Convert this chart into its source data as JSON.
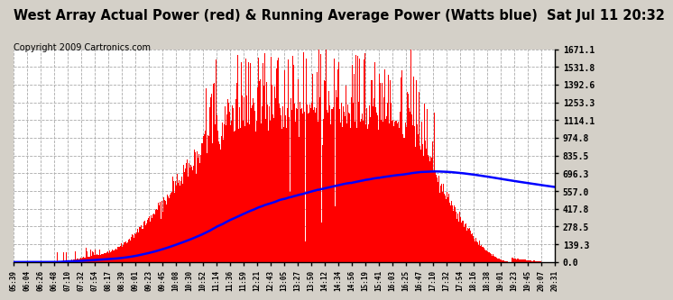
{
  "title": "West Array Actual Power (red) & Running Average Power (Watts blue)  Sat Jul 11 20:32",
  "copyright": "Copyright 2009 Cartronics.com",
  "ymax": 1671.1,
  "yticks": [
    0.0,
    139.3,
    278.5,
    417.8,
    557.0,
    696.3,
    835.5,
    974.8,
    1114.1,
    1253.3,
    1392.6,
    1531.8,
    1671.1
  ],
  "xtick_labels": [
    "05:39",
    "06:04",
    "06:26",
    "06:48",
    "07:10",
    "07:32",
    "07:54",
    "08:17",
    "08:39",
    "09:01",
    "09:23",
    "09:45",
    "10:08",
    "10:30",
    "10:52",
    "11:14",
    "11:36",
    "11:59",
    "12:21",
    "12:43",
    "13:05",
    "13:27",
    "13:50",
    "14:12",
    "14:34",
    "14:56",
    "15:19",
    "15:41",
    "16:03",
    "16:25",
    "16:47",
    "17:10",
    "17:32",
    "17:54",
    "18:16",
    "18:38",
    "19:01",
    "19:23",
    "19:45",
    "20:07",
    "20:31"
  ],
  "bg_color": "#d4d0c8",
  "plot_bg_color": "#ffffff",
  "red_color": "#ff0000",
  "blue_color": "#0000ff",
  "title_fontsize": 10.5,
  "copyright_fontsize": 7,
  "grid_color": "#aaaaaa",
  "border_color": "#000000"
}
